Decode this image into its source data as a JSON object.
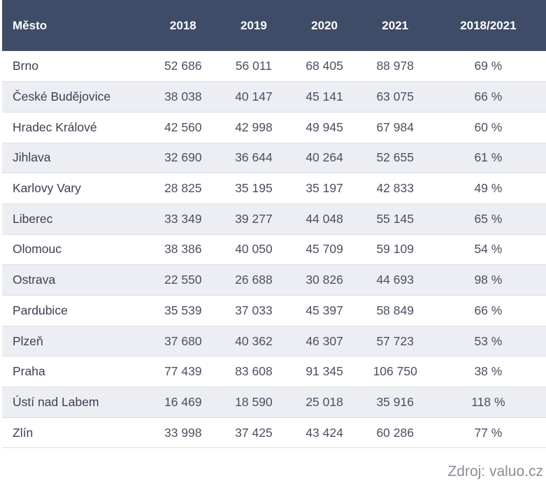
{
  "table": {
    "headers": [
      "Město",
      "2018",
      "2019",
      "2020",
      "2021",
      "2018/2021"
    ],
    "rows": [
      [
        "Brno",
        "52 686",
        "56 011",
        "68 405",
        "88 978",
        "69 %"
      ],
      [
        "České Budějovice",
        "38 038",
        "40 147",
        "45 141",
        "63 075",
        "66 %"
      ],
      [
        "Hradec Králové",
        "42 560",
        "42 998",
        "49 945",
        "67 984",
        "60 %"
      ],
      [
        "Jihlava",
        "32 690",
        "36 644",
        "40 264",
        "52 655",
        "61 %"
      ],
      [
        "Karlovy Vary",
        "28 825",
        "35 195",
        "35 197",
        "42 833",
        "49 %"
      ],
      [
        "Liberec",
        "33 349",
        "39 277",
        "44 048",
        "55 145",
        "65 %"
      ],
      [
        "Olomouc",
        "38 386",
        "40 050",
        "45 709",
        "59 109",
        "54 %"
      ],
      [
        "Ostrava",
        "22 550",
        "26 688",
        "30 826",
        "44 693",
        "98 %"
      ],
      [
        "Pardubice",
        "35 539",
        "37 033",
        "45 397",
        "58 849",
        "66 %"
      ],
      [
        "Plzeň",
        "37 680",
        "40 362",
        "46 307",
        "57 723",
        "53 %"
      ],
      [
        "Praha",
        "77 439",
        "83 608",
        "91 345",
        "106 750",
        "38 %"
      ],
      [
        "Ústí nad Labem",
        "16 469",
        "18 590",
        "25 018",
        "35 916",
        "118 %"
      ],
      [
        "Zlín",
        "33 998",
        "37 425",
        "43 424",
        "60 286",
        "77 %"
      ]
    ]
  },
  "source": "Zdroj: valuo.cz",
  "colors": {
    "header_bg": "#3f4c68",
    "header_text": "#ffffff",
    "stripe_bg": "#eceef3",
    "source_text": "#8a8e96"
  }
}
